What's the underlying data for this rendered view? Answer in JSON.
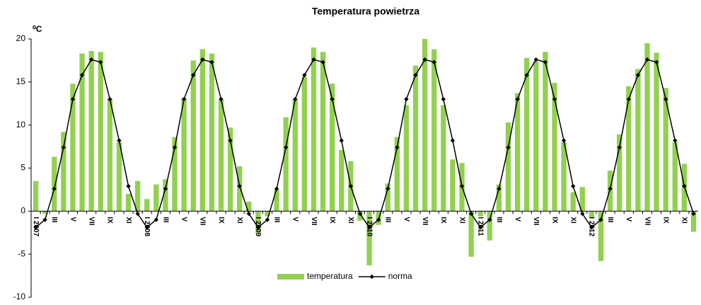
{
  "chart_data": {
    "type": "bar_line",
    "title": "Temperatura powietrza",
    "y_label": "⁰C",
    "categories": [
      "I 2007",
      null,
      "III",
      null,
      "V",
      null,
      "VII",
      null,
      "IX",
      null,
      "XI",
      null,
      "I 2008",
      null,
      "III",
      null,
      "V",
      null,
      "VII",
      null,
      "IX",
      null,
      "XI",
      null,
      "I 2009",
      null,
      "III",
      null,
      "V",
      null,
      "VII",
      null,
      "IX",
      null,
      "XI",
      null,
      "I 2010",
      null,
      "III",
      null,
      "V",
      null,
      "VII",
      null,
      "IX",
      null,
      "XI",
      null,
      "I 2011",
      null,
      "III",
      null,
      "V",
      null,
      "VII",
      null,
      "IX",
      null,
      "XI",
      null,
      "I 2012",
      null,
      "III",
      null,
      "V",
      null,
      "VII",
      null,
      "IX",
      null,
      "XI",
      null
    ],
    "series": [
      {
        "name": "temperatura",
        "kind": "bar",
        "color": "#92d050",
        "values": [
          3.5,
          -0.3,
          6.3,
          9.2,
          14.8,
          18.3,
          18.6,
          18.5,
          13.0,
          8.0,
          2.0,
          3.5,
          1.4,
          3.1,
          3.7,
          8.6,
          13.1,
          17.5,
          18.8,
          18.3,
          12.9,
          9.7,
          5.2,
          1.1,
          -2.6,
          -0.6,
          2.5,
          10.9,
          13.0,
          15.6,
          19.0,
          18.5,
          14.8,
          7.1,
          5.8,
          -1.1,
          -6.3,
          -1.6,
          3.2,
          8.6,
          12.3,
          16.9,
          20.0,
          18.8,
          12.3,
          6.0,
          5.6,
          -5.3,
          -0.6,
          -3.4,
          3.1,
          10.3,
          13.7,
          17.8,
          17.4,
          18.5,
          14.9,
          8.0,
          2.2,
          2.8,
          -0.8,
          -5.8,
          4.7,
          8.9,
          14.5,
          16.5,
          19.5,
          18.4,
          14.3,
          8.0,
          5.5,
          -2.4
        ]
      },
      {
        "name": "norma",
        "kind": "line",
        "color": "#000000",
        "values": [
          -1.9,
          -1.0,
          2.6,
          7.4,
          13.0,
          15.8,
          17.6,
          17.3,
          13.0,
          8.2,
          2.9,
          -0.3,
          -1.9,
          -1.0,
          2.6,
          7.4,
          13.0,
          15.8,
          17.6,
          17.3,
          13.0,
          8.2,
          2.9,
          -0.3,
          -1.9,
          -1.0,
          2.6,
          7.4,
          13.0,
          15.8,
          17.6,
          17.3,
          13.0,
          8.2,
          2.9,
          -0.3,
          -1.9,
          -1.0,
          2.6,
          7.4,
          13.0,
          15.8,
          17.6,
          17.3,
          13.0,
          8.2,
          2.9,
          -0.3,
          -1.9,
          -1.0,
          2.6,
          7.4,
          13.0,
          15.8,
          17.6,
          17.3,
          13.0,
          8.2,
          2.9,
          -0.3,
          -1.9,
          -1.0,
          2.6,
          7.4,
          13.0,
          15.8,
          17.6,
          17.3,
          13.0,
          8.2,
          2.9,
          -0.3
        ]
      }
    ],
    "ylim": [
      -10,
      20
    ],
    "yticks": [
      -10,
      -5,
      0,
      5,
      10,
      15,
      20
    ],
    "legend": "bottom",
    "grid": false
  }
}
